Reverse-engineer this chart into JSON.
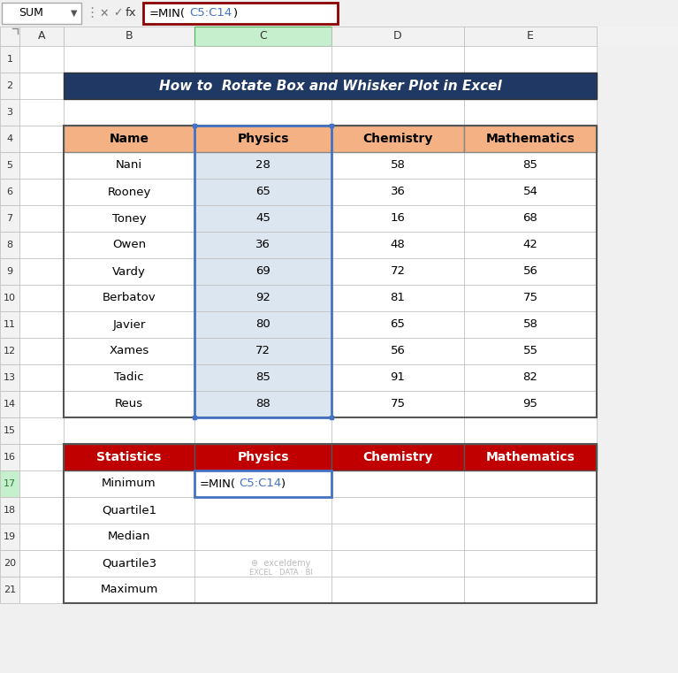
{
  "title": "How to  Rotate Box and Whisker Plot in Excel",
  "title_bg": "#1F3864",
  "title_color": "#FFFFFF",
  "col_headers_top": [
    "A",
    "B",
    "C",
    "D",
    "E"
  ],
  "table1_headers": [
    "Name",
    "Physics",
    "Chemistry",
    "Mathematics"
  ],
  "table1_header_bg": "#F4B183",
  "table1_names": [
    "Nani",
    "Rooney",
    "Toney",
    "Owen",
    "Vardy",
    "Berbatov",
    "Javier",
    "Xames",
    "Tadic",
    "Reus"
  ],
  "table1_physics": [
    28,
    65,
    45,
    36,
    69,
    92,
    80,
    72,
    85,
    88
  ],
  "table1_chemistry": [
    58,
    36,
    16,
    48,
    72,
    81,
    65,
    56,
    91,
    75
  ],
  "table1_mathematics": [
    85,
    54,
    68,
    42,
    56,
    75,
    58,
    55,
    82,
    95
  ],
  "table1_physics_col_bg": "#DCE6F1",
  "physics_col_border": "#4472C4",
  "table2_headers": [
    "Statistics",
    "Physics",
    "Chemistry",
    "Mathematics"
  ],
  "table2_header_bg": "#C00000",
  "table2_header_color": "#FFFFFF",
  "table2_stats": [
    "Minimum",
    "Quartile1",
    "Median",
    "Quartile3",
    "Maximum"
  ],
  "cell_border_color": "#C0C0C0",
  "outer_border_color": "#888888",
  "row_numbers": [
    "1",
    "2",
    "3",
    "4",
    "5",
    "6",
    "7",
    "8",
    "9",
    "10",
    "11",
    "12",
    "13",
    "14",
    "15",
    "16",
    "17",
    "18",
    "19",
    "20",
    "21"
  ],
  "col_header_bg": "#F2F2F2",
  "selected_col_bg": "#C6EFCE",
  "row_num_selected_bg": "#C6EFCE",
  "formula_bar_bg": "#FFFFFF",
  "bg_color": "#F0F0F0",
  "white": "#FFFFFF",
  "row_num_bg": "#F2F2F2",
  "formula_border": "#8B0000",
  "formula_text_blue": "#4472C4"
}
